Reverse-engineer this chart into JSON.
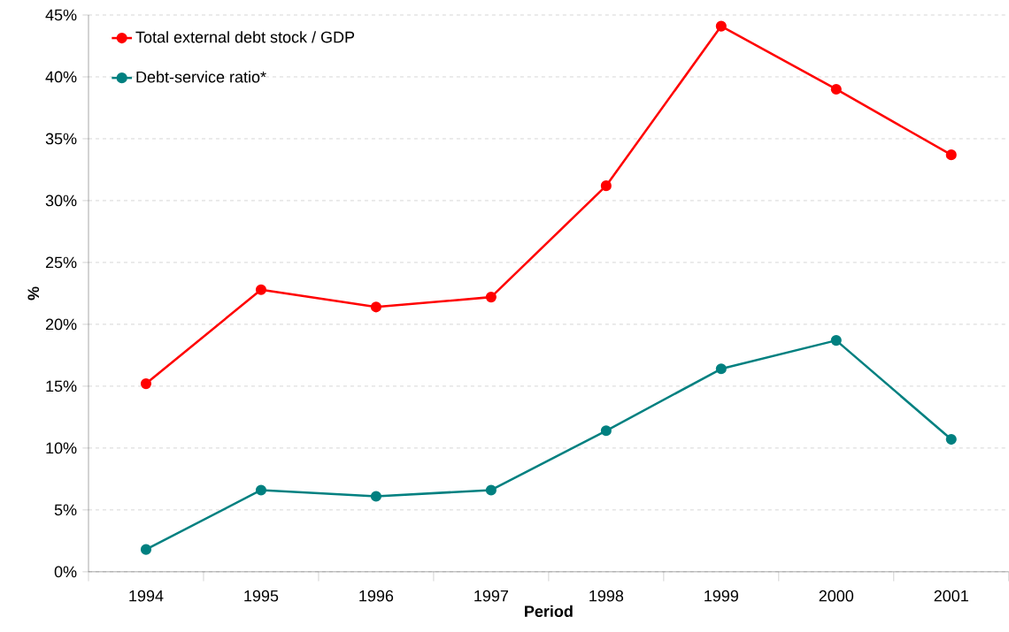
{
  "chart_data": {
    "type": "line",
    "xlabel": "Period",
    "ylabel": "%",
    "categories": [
      "1994",
      "1995",
      "1996",
      "1997",
      "1998",
      "1999",
      "2000",
      "2001"
    ],
    "series": [
      {
        "name": "Total external debt stock / GDP",
        "color": "#ff0000",
        "values": [
          15.2,
          22.8,
          21.4,
          22.2,
          31.2,
          44.1,
          39.0,
          33.7
        ]
      },
      {
        "name": "Debt-service ratio*",
        "color": "#008080",
        "values": [
          1.8,
          6.6,
          6.1,
          6.6,
          11.4,
          16.4,
          18.7,
          10.7
        ]
      }
    ],
    "ylim": [
      0,
      45
    ],
    "yticks": [
      {
        "value": 0,
        "label": "0%"
      },
      {
        "value": 5,
        "label": "5%"
      },
      {
        "value": 10,
        "label": "10%"
      },
      {
        "value": 15,
        "label": "15%"
      },
      {
        "value": 20,
        "label": "20%"
      },
      {
        "value": 25,
        "label": "25%"
      },
      {
        "value": 30,
        "label": "30%"
      },
      {
        "value": 35,
        "label": "35%"
      },
      {
        "value": 40,
        "label": "40%"
      },
      {
        "value": 45,
        "label": "45%"
      }
    ],
    "grid": "y",
    "legend": "top left",
    "marker": "circle",
    "line_style": "solid"
  }
}
